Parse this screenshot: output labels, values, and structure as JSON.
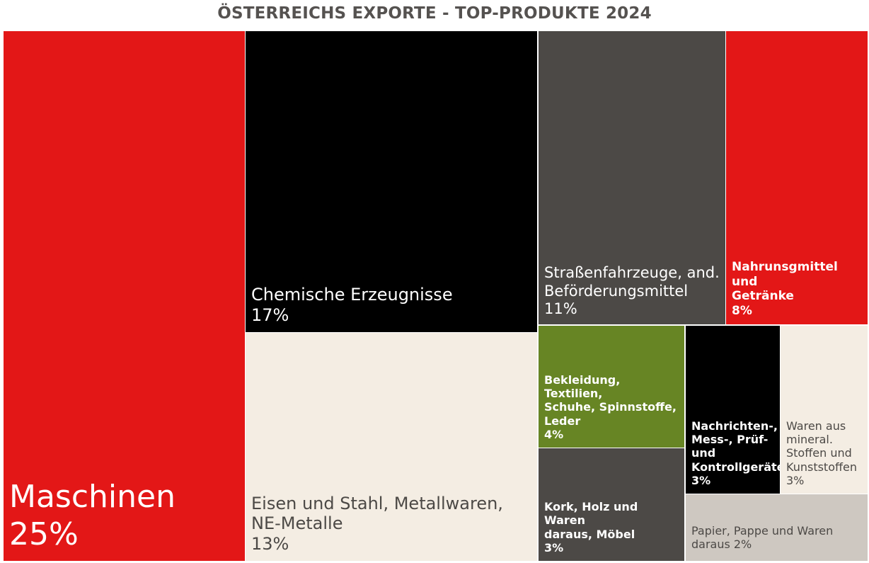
{
  "chart_data": {
    "type": "treemap",
    "title": "ÖSTERREICHS EXPORTE - TOP-PRODUKTE 2024",
    "unit": "%",
    "items": [
      {
        "label": "Maschinen",
        "value": 25,
        "value_label": "25%",
        "color": "#E31717",
        "text_color": "#FFFFFF"
      },
      {
        "label": "Chemische Erzeugnisse",
        "value": 17,
        "value_label": "17%",
        "color": "#000000",
        "text_color": "#FFFFFF"
      },
      {
        "label": "Eisen und Stahl, Metallwaren,\nNE-Metalle",
        "value": 13,
        "value_label": "13%",
        "color": "#F4EDE3",
        "text_color": "#4C4946"
      },
      {
        "label": "Straßenfahrzeuge, and.\nBeförderungsmittel",
        "value": 11,
        "value_label": "11%",
        "color": "#4C4946",
        "text_color": "#FFFFFF"
      },
      {
        "label": "Nahrunsgmittel und\nGetränke",
        "value": 8,
        "value_label": "8%",
        "color": "#E31717",
        "text_color": "#FFFFFF"
      },
      {
        "label": "Bekleidung, Textilien,\nSchuhe, Spinnstoffe,\nLeder",
        "value": 4,
        "value_label": "4%",
        "color": "#678524",
        "text_color": "#FFFFFF"
      },
      {
        "label": "Kork, Holz und Waren\ndaraus, Möbel",
        "value": 3,
        "value_label": "3%",
        "color": "#4C4946",
        "text_color": "#FFFFFF"
      },
      {
        "label": "Nachrichten-,\nMess-, Prüf-\nund\nKontrollgeräte",
        "value": 3,
        "value_label": "3%",
        "color": "#000000",
        "text_color": "#FFFFFF"
      },
      {
        "label": "Waren aus\nmineral.\nStoffen und\nKunststoffen",
        "value": 3,
        "value_label": "3%",
        "color": "#F4EDE3",
        "text_color": "#4C4946"
      },
      {
        "label": "Papier, Pappe und Waren\ndaraus",
        "value": 2,
        "value_label": "2%",
        "color": "#CEC8C1",
        "text_color": "#4C4946"
      }
    ]
  }
}
